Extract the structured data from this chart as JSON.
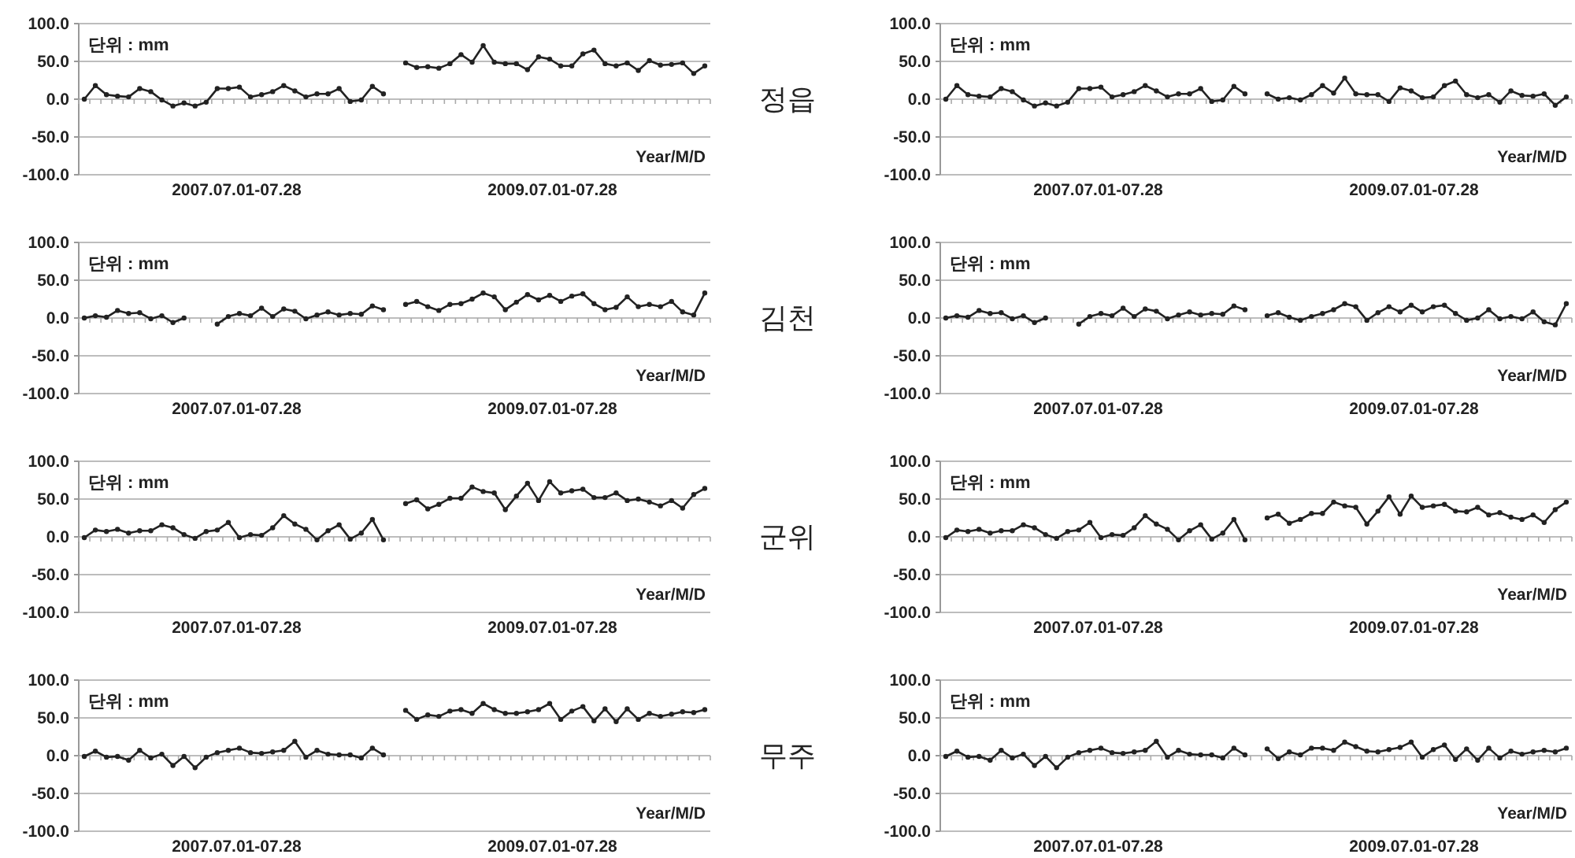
{
  "chart_data": [
    {
      "type": "line",
      "ylabel": "단위 : mm",
      "xlabel": "Year/M/D",
      "annotations": [
        "2007.07.01-07.28",
        "2009.07.01-07.28"
      ],
      "categories": [
        null,
        null,
        null,
        null,
        null,
        null,
        null,
        null,
        null,
        null,
        null,
        null,
        null,
        null,
        null,
        null,
        null,
        null,
        null,
        null,
        null,
        null,
        null,
        null,
        null,
        null,
        null,
        null,
        null,
        null,
        null,
        null,
        null,
        null,
        null,
        null,
        null,
        null,
        null,
        null,
        null,
        null,
        null,
        null,
        null,
        null,
        null,
        null,
        null,
        null,
        null,
        null,
        null,
        null,
        null,
        null,
        null
      ],
      "ylim": [
        -100,
        100
      ],
      "yticks": [
        {
          "value": -100,
          "label": "-100.0"
        },
        {
          "value": -50,
          "label": "-50.0"
        },
        {
          "value": 0,
          "label": "0.0"
        },
        {
          "value": 50,
          "label": "50.0"
        },
        {
          "value": 100,
          "label": "100.0"
        }
      ],
      "grid": "y",
      "marker": "circle",
      "line_style": "solid",
      "series": [
        {
          "color": "#222222",
          "values": [
            0,
            18,
            6,
            4,
            3,
            14,
            10,
            -1,
            -9,
            -5,
            -9,
            -4,
            14,
            14,
            16,
            3,
            6,
            10,
            18,
            11,
            3,
            7,
            7,
            14,
            -3,
            -1,
            17,
            7,
            null,
            48,
            42,
            43,
            41,
            47,
            59,
            49,
            71,
            49,
            47,
            47,
            39,
            56,
            53,
            44,
            44,
            60,
            65,
            47,
            44,
            48,
            38,
            51,
            45,
            46,
            48,
            34,
            44
          ]
        }
      ]
    },
    {
      "type": "line",
      "ylabel": "단위 : mm",
      "xlabel": "Year/M/D",
      "annotations": [
        "2007.07.01-07.28",
        "2009.07.01-07.28"
      ],
      "categories": [
        null,
        null,
        null,
        null,
        null,
        null,
        null,
        null,
        null,
        null,
        null,
        null,
        null,
        null,
        null,
        null,
        null,
        null,
        null,
        null,
        null,
        null,
        null,
        null,
        null,
        null,
        null,
        null,
        null,
        null,
        null,
        null,
        null,
        null,
        null,
        null,
        null,
        null,
        null,
        null,
        null,
        null,
        null,
        null,
        null,
        null,
        null,
        null,
        null,
        null,
        null,
        null,
        null,
        null,
        null,
        null,
        null
      ],
      "ylim": [
        -100,
        100
      ],
      "yticks": [
        {
          "value": -100,
          "label": "-100.0"
        },
        {
          "value": -50,
          "label": "-50.0"
        },
        {
          "value": 0,
          "label": "0.0"
        },
        {
          "value": 50,
          "label": "50.0"
        },
        {
          "value": 100,
          "label": "100.0"
        }
      ],
      "grid": "y",
      "marker": "circle",
      "line_style": "solid",
      "series": [
        {
          "color": "#222222",
          "values": [
            0,
            18,
            6,
            4,
            3,
            14,
            10,
            -1,
            -9,
            -5,
            -9,
            -4,
            14,
            14,
            16,
            3,
            6,
            10,
            18,
            11,
            3,
            7,
            7,
            14,
            -3,
            -1,
            17,
            7,
            null,
            7,
            0,
            2,
            -1,
            6,
            18,
            8,
            28,
            7,
            6,
            6,
            -3,
            15,
            11,
            2,
            3,
            18,
            24,
            6,
            2,
            6,
            -4,
            11,
            5,
            4,
            7,
            -8,
            3
          ]
        }
      ]
    },
    {
      "type": "line",
      "ylabel": "단위 : mm",
      "xlabel": "Year/M/D",
      "annotations": [
        "2007.07.01-07.28",
        "2009.07.01-07.28"
      ],
      "categories": [
        null,
        null,
        null,
        null,
        null,
        null,
        null,
        null,
        null,
        null,
        null,
        null,
        null,
        null,
        null,
        null,
        null,
        null,
        null,
        null,
        null,
        null,
        null,
        null,
        null,
        null,
        null,
        null,
        null,
        null,
        null,
        null,
        null,
        null,
        null,
        null,
        null,
        null,
        null,
        null,
        null,
        null,
        null,
        null,
        null,
        null,
        null,
        null,
        null,
        null,
        null,
        null,
        null,
        null,
        null,
        null,
        null
      ],
      "ylim": [
        -100,
        100
      ],
      "yticks": [
        {
          "value": -100,
          "label": "-100.0"
        },
        {
          "value": -50,
          "label": "-50.0"
        },
        {
          "value": 0,
          "label": "0.0"
        },
        {
          "value": 50,
          "label": "50.0"
        },
        {
          "value": 100,
          "label": "100.0"
        }
      ],
      "grid": "y",
      "marker": "circle",
      "line_style": "solid",
      "series": [
        {
          "color": "#222222",
          "values": [
            0,
            3,
            1,
            10,
            6,
            7,
            -1,
            3,
            -6,
            0,
            null,
            null,
            -8,
            2,
            6,
            3,
            13,
            2,
            12,
            9,
            -1,
            4,
            8,
            4,
            6,
            5,
            16,
            11,
            null,
            18,
            22,
            15,
            10,
            18,
            19,
            25,
            33,
            28,
            11,
            21,
            31,
            24,
            30,
            22,
            29,
            32,
            19,
            11,
            14,
            28,
            15,
            18,
            15,
            22,
            8,
            4,
            33
          ]
        }
      ]
    },
    {
      "type": "line",
      "ylabel": "단위 : mm",
      "xlabel": "Year/M/D",
      "annotations": [
        "2007.07.01-07.28",
        "2009.07.01-07.28"
      ],
      "categories": [
        null,
        null,
        null,
        null,
        null,
        null,
        null,
        null,
        null,
        null,
        null,
        null,
        null,
        null,
        null,
        null,
        null,
        null,
        null,
        null,
        null,
        null,
        null,
        null,
        null,
        null,
        null,
        null,
        null,
        null,
        null,
        null,
        null,
        null,
        null,
        null,
        null,
        null,
        null,
        null,
        null,
        null,
        null,
        null,
        null,
        null,
        null,
        null,
        null,
        null,
        null,
        null,
        null,
        null,
        null,
        null,
        null
      ],
      "ylim": [
        -100,
        100
      ],
      "yticks": [
        {
          "value": -100,
          "label": "-100.0"
        },
        {
          "value": -50,
          "label": "-50.0"
        },
        {
          "value": 0,
          "label": "0.0"
        },
        {
          "value": 50,
          "label": "50.0"
        },
        {
          "value": 100,
          "label": "100.0"
        }
      ],
      "grid": "y",
      "marker": "circle",
      "line_style": "solid",
      "series": [
        {
          "color": "#222222",
          "values": [
            0,
            3,
            1,
            10,
            6,
            7,
            -1,
            3,
            -6,
            0,
            null,
            null,
            -8,
            2,
            6,
            3,
            13,
            2,
            12,
            9,
            -1,
            4,
            8,
            4,
            6,
            5,
            16,
            11,
            null,
            3,
            7,
            1,
            -3,
            2,
            6,
            11,
            19,
            15,
            -3,
            7,
            15,
            8,
            17,
            8,
            15,
            17,
            6,
            -3,
            0,
            11,
            -1,
            2,
            -1,
            8,
            -5,
            -9,
            19
          ]
        }
      ]
    },
    {
      "type": "line",
      "ylabel": "단위 : mm",
      "xlabel": "Year/M/D",
      "annotations": [
        "2007.07.01-07.28",
        "2009.07.01-07.28"
      ],
      "categories": [
        null,
        null,
        null,
        null,
        null,
        null,
        null,
        null,
        null,
        null,
        null,
        null,
        null,
        null,
        null,
        null,
        null,
        null,
        null,
        null,
        null,
        null,
        null,
        null,
        null,
        null,
        null,
        null,
        null,
        null,
        null,
        null,
        null,
        null,
        null,
        null,
        null,
        null,
        null,
        null,
        null,
        null,
        null,
        null,
        null,
        null,
        null,
        null,
        null,
        null,
        null,
        null,
        null,
        null,
        null,
        null,
        null
      ],
      "ylim": [
        -100,
        100
      ],
      "yticks": [
        {
          "value": -100,
          "label": "-100.0"
        },
        {
          "value": -50,
          "label": "-50.0"
        },
        {
          "value": 0,
          "label": "0.0"
        },
        {
          "value": 50,
          "label": "50.0"
        },
        {
          "value": 100,
          "label": "100.0"
        }
      ],
      "grid": "y",
      "marker": "circle",
      "line_style": "solid",
      "series": [
        {
          "color": "#222222",
          "values": [
            -1,
            9,
            7,
            10,
            5,
            8,
            8,
            16,
            12,
            3,
            -2,
            7,
            9,
            19,
            -1,
            3,
            2,
            12,
            28,
            17,
            10,
            -4,
            8,
            16,
            -3,
            5,
            23,
            -4,
            null,
            44,
            49,
            37,
            43,
            51,
            51,
            66,
            60,
            58,
            36,
            54,
            71,
            48,
            73,
            58,
            61,
            63,
            52,
            52,
            58,
            48,
            50,
            46,
            41,
            48,
            38,
            56,
            64
          ]
        }
      ]
    },
    {
      "type": "line",
      "ylabel": "단위 : mm",
      "xlabel": "Year/M/D",
      "annotations": [
        "2007.07.01-07.28",
        "2009.07.01-07.28"
      ],
      "categories": [
        null,
        null,
        null,
        null,
        null,
        null,
        null,
        null,
        null,
        null,
        null,
        null,
        null,
        null,
        null,
        null,
        null,
        null,
        null,
        null,
        null,
        null,
        null,
        null,
        null,
        null,
        null,
        null,
        null,
        null,
        null,
        null,
        null,
        null,
        null,
        null,
        null,
        null,
        null,
        null,
        null,
        null,
        null,
        null,
        null,
        null,
        null,
        null,
        null,
        null,
        null,
        null,
        null,
        null,
        null,
        null,
        null
      ],
      "ylim": [
        -100,
        100
      ],
      "yticks": [
        {
          "value": -100,
          "label": "-100.0"
        },
        {
          "value": -50,
          "label": "-50.0"
        },
        {
          "value": 0,
          "label": "0.0"
        },
        {
          "value": 50,
          "label": "50.0"
        },
        {
          "value": 100,
          "label": "100.0"
        }
      ],
      "grid": "y",
      "marker": "circle",
      "line_style": "solid",
      "series": [
        {
          "color": "#222222",
          "values": [
            -1,
            9,
            7,
            10,
            5,
            8,
            8,
            16,
            12,
            3,
            -2,
            7,
            9,
            19,
            -1,
            3,
            2,
            12,
            28,
            17,
            10,
            -4,
            8,
            16,
            -3,
            5,
            23,
            -4,
            null,
            25,
            30,
            18,
            23,
            31,
            31,
            46,
            41,
            39,
            17,
            34,
            53,
            30,
            54,
            39,
            41,
            43,
            34,
            33,
            39,
            29,
            32,
            26,
            23,
            29,
            19,
            36,
            46
          ]
        }
      ]
    },
    {
      "type": "line",
      "ylabel": "단위 : mm",
      "xlabel": "Year/M/D",
      "annotations": [
        "2007.07.01-07.28",
        "2009.07.01-07.28"
      ],
      "categories": [
        null,
        null,
        null,
        null,
        null,
        null,
        null,
        null,
        null,
        null,
        null,
        null,
        null,
        null,
        null,
        null,
        null,
        null,
        null,
        null,
        null,
        null,
        null,
        null,
        null,
        null,
        null,
        null,
        null,
        null,
        null,
        null,
        null,
        null,
        null,
        null,
        null,
        null,
        null,
        null,
        null,
        null,
        null,
        null,
        null,
        null,
        null,
        null,
        null,
        null,
        null,
        null,
        null,
        null,
        null,
        null,
        null
      ],
      "ylim": [
        -100,
        100
      ],
      "yticks": [
        {
          "value": -100,
          "label": "-100.0"
        },
        {
          "value": -50,
          "label": "-50.0"
        },
        {
          "value": 0,
          "label": "0.0"
        },
        {
          "value": 50,
          "label": "50.0"
        },
        {
          "value": 100,
          "label": "100.0"
        }
      ],
      "grid": "y",
      "marker": "circle",
      "line_style": "solid",
      "series": [
        {
          "color": "#222222",
          "values": [
            -1,
            6,
            -2,
            -1,
            -6,
            7,
            -3,
            2,
            -13,
            -1,
            -16,
            -2,
            4,
            7,
            10,
            4,
            3,
            5,
            7,
            19,
            -2,
            7,
            2,
            1,
            1,
            -3,
            10,
            1,
            null,
            60,
            48,
            54,
            52,
            59,
            61,
            56,
            69,
            61,
            56,
            56,
            58,
            61,
            69,
            48,
            59,
            65,
            46,
            62,
            45,
            62,
            48,
            56,
            52,
            55,
            58,
            57,
            61
          ]
        }
      ]
    },
    {
      "type": "line",
      "ylabel": "단위 : mm",
      "xlabel": "Year/M/D",
      "annotations": [
        "2007.07.01-07.28",
        "2009.07.01-07.28"
      ],
      "categories": [
        null,
        null,
        null,
        null,
        null,
        null,
        null,
        null,
        null,
        null,
        null,
        null,
        null,
        null,
        null,
        null,
        null,
        null,
        null,
        null,
        null,
        null,
        null,
        null,
        null,
        null,
        null,
        null,
        null,
        null,
        null,
        null,
        null,
        null,
        null,
        null,
        null,
        null,
        null,
        null,
        null,
        null,
        null,
        null,
        null,
        null,
        null,
        null,
        null,
        null,
        null,
        null,
        null,
        null,
        null,
        null,
        null
      ],
      "ylim": [
        -100,
        100
      ],
      "yticks": [
        {
          "value": -100,
          "label": "-100.0"
        },
        {
          "value": -50,
          "label": "-50.0"
        },
        {
          "value": 0,
          "label": "0.0"
        },
        {
          "value": 50,
          "label": "50.0"
        },
        {
          "value": 100,
          "label": "100.0"
        }
      ],
      "grid": "y",
      "marker": "circle",
      "line_style": "solid",
      "series": [
        {
          "color": "#222222",
          "values": [
            -1,
            6,
            -2,
            -1,
            -6,
            7,
            -3,
            2,
            -13,
            -1,
            -16,
            -2,
            4,
            7,
            10,
            4,
            3,
            5,
            7,
            19,
            -2,
            7,
            2,
            1,
            1,
            -3,
            10,
            1,
            null,
            9,
            -4,
            5,
            1,
            10,
            10,
            7,
            18,
            12,
            6,
            5,
            8,
            11,
            18,
            -2,
            8,
            14,
            -5,
            9,
            -6,
            10,
            -3,
            6,
            2,
            5,
            7,
            5,
            10
          ]
        }
      ]
    },
    {
      "type": "other",
      "annotations": [
        "정읍",
        "김천",
        "군위",
        "무주"
      ]
    }
  ]
}
